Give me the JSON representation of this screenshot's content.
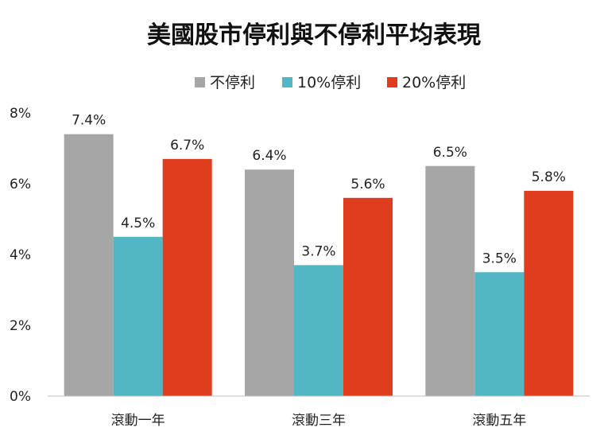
{
  "chart_data": {
    "type": "bar",
    "title": "美國股市停利與不停利平均表現",
    "categories": [
      "滾動一年",
      "滾動三年",
      "滾動五年"
    ],
    "series": [
      {
        "name": "不停利",
        "color": "#a6a6a6",
        "values": [
          7.4,
          6.4,
          6.5
        ],
        "labels": [
          "7.4%",
          "6.4%",
          "6.5%"
        ]
      },
      {
        "name": "10%停利",
        "color": "#52b6c5",
        "values": [
          4.5,
          3.7,
          3.5
        ],
        "labels": [
          "4.5%",
          "3.7%",
          "3.5%"
        ]
      },
      {
        "name": "20%停利",
        "color": "#e03c1e",
        "values": [
          6.7,
          5.6,
          5.8
        ],
        "labels": [
          "6.7%",
          "5.6%",
          "5.8%"
        ]
      }
    ],
    "ylim": [
      0,
      8
    ],
    "yticks": [
      0,
      2,
      4,
      6,
      8
    ],
    "ytick_labels": [
      "0%",
      "2%",
      "4%",
      "6%",
      "8%"
    ],
    "legend_position": "top-center",
    "grid": false
  }
}
